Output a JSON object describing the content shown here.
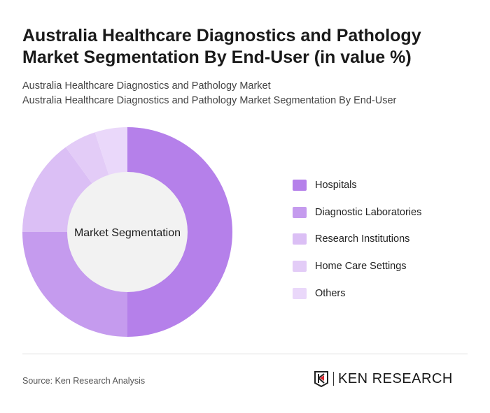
{
  "title": "Australia Healthcare Diagnostics and Pathology Market Segmentation By End-User (in value %)",
  "subtitle1": "Australia Healthcare Diagnostics and Pathology Market",
  "subtitle2": "Australia Healthcare Diagnostics and Pathology Market Segmentation By End-User",
  "chart_data": {
    "type": "pie",
    "variant": "donut",
    "center_label": "Market Segmentation",
    "categories": [
      "Hospitals",
      "Diagnostic Laboratories",
      "Research Institutions",
      "Home Care Settings",
      "Others"
    ],
    "values": [
      50,
      25,
      15,
      5,
      5
    ],
    "colors": [
      "#b580ea",
      "#c59bee",
      "#dbbff5",
      "#e3ccf7",
      "#ead8fa"
    ],
    "legend_position": "right"
  },
  "source": "Source: Ken Research Analysis",
  "logo_text": "KEN RESEARCH"
}
